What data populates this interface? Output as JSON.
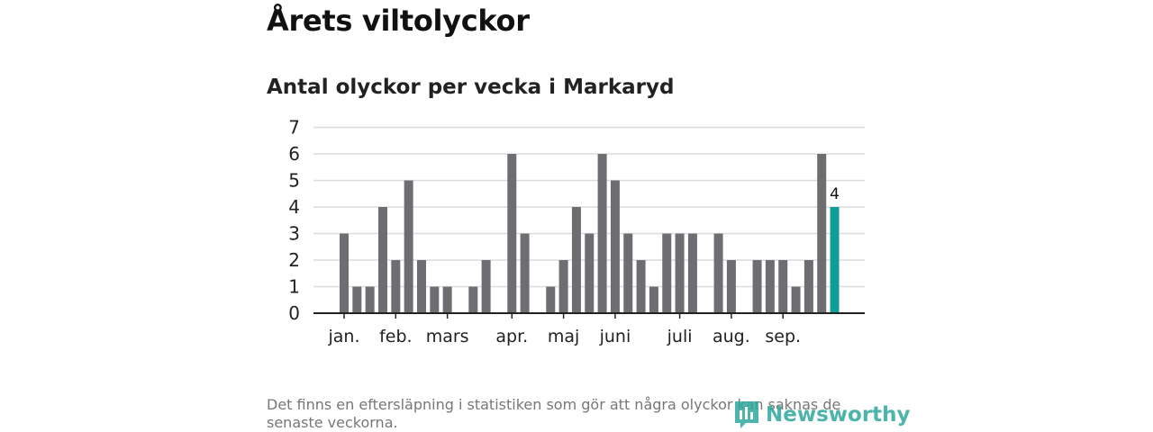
{
  "header": {
    "title": "Årets viltolyckor"
  },
  "chart_data": {
    "type": "bar",
    "title": "Antal olyckor per vecka i Markaryd",
    "xlabel": "",
    "ylabel": "",
    "ylim": [
      0,
      7
    ],
    "yticks": [
      0,
      1,
      2,
      3,
      4,
      5,
      6,
      7
    ],
    "grid": true,
    "weeks": [
      1,
      2,
      3,
      4,
      5,
      6,
      7,
      8,
      9,
      10,
      11,
      12,
      13,
      14,
      15,
      16,
      17,
      18,
      19,
      20,
      21,
      22,
      23,
      24,
      25,
      26,
      27,
      28,
      29,
      30,
      31,
      32,
      33,
      34,
      35,
      36,
      37,
      38,
      39,
      40
    ],
    "values": [
      3,
      1,
      1,
      4,
      2,
      5,
      2,
      1,
      1,
      0,
      1,
      2,
      0,
      6,
      3,
      0,
      1,
      2,
      4,
      3,
      6,
      5,
      3,
      2,
      1,
      3,
      3,
      3,
      0,
      3,
      2,
      0,
      2,
      2,
      2,
      1,
      2,
      6,
      4,
      null
    ],
    "highlight_week": 39,
    "highlight_label": "4",
    "month_labels": [
      {
        "label": "jan.",
        "week": 1
      },
      {
        "label": "feb.",
        "week": 5
      },
      {
        "label": "mars",
        "week": 9
      },
      {
        "label": "apr.",
        "week": 14
      },
      {
        "label": "maj",
        "week": 18
      },
      {
        "label": "juni",
        "week": 22
      },
      {
        "label": "juli",
        "week": 27
      },
      {
        "label": "aug.",
        "week": 31
      },
      {
        "label": "sep.",
        "week": 35
      }
    ],
    "colors": {
      "bar": "#6e6d72",
      "highlight": "#0f9e95",
      "grid": "#dcdcdc",
      "axis": "#222222"
    }
  },
  "footer": {
    "note": "Det finns en eftersläpning i statistiken som gör att några olyckor kan saknas de senaste veckorna.",
    "brand": "Newsworthy"
  }
}
